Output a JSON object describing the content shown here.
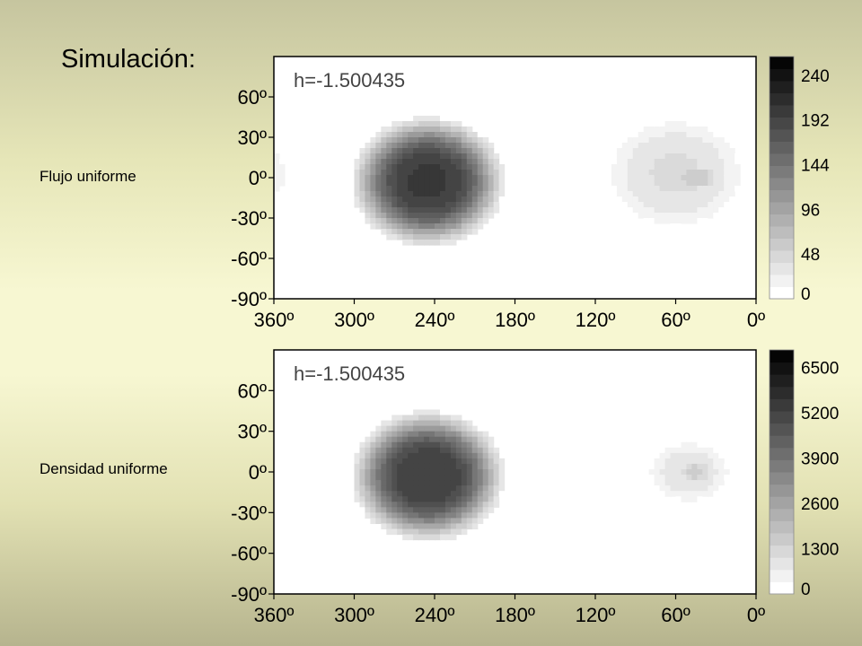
{
  "slide": {
    "title": "Simulación:",
    "row_labels": [
      "Flujo uniforme",
      "Densidad uniforme"
    ]
  },
  "colors": {
    "background_light": "#f7f7d2",
    "plot_bg": "#ffffff",
    "ink": "#000000"
  },
  "chart_data": [
    {
      "type": "heatmap",
      "annotation": "h=-1.500435",
      "xlabel": "",
      "ylabel": "",
      "xlim": [
        360,
        0
      ],
      "ylim": [
        -90,
        90
      ],
      "x_ticks": [
        360,
        300,
        240,
        180,
        120,
        60,
        0
      ],
      "x_tick_labels": [
        "360º",
        "300º",
        "240º",
        "180º",
        "120º",
        "60º",
        "0º"
      ],
      "y_ticks": [
        60,
        30,
        0,
        -30,
        -60,
        -90
      ],
      "y_tick_labels": [
        "60º",
        "30º",
        "0º",
        "-30º",
        "-60º",
        "-90º"
      ],
      "colorbar": {
        "min": 0,
        "max": 260,
        "ticks": [
          0,
          48,
          96,
          144,
          192,
          240
        ],
        "tick_labels": [
          "0",
          "48",
          "96",
          "144",
          "192",
          "240"
        ]
      },
      "features": [
        {
          "name": "dark-blob",
          "center_lon": 245,
          "center_lat": -3,
          "lon_halfwidth": 50,
          "lat_halfwidth": 42,
          "peak": 210
        },
        {
          "name": "light-blob",
          "center_lon": 60,
          "center_lat": 3,
          "lon_halfwidth": 48,
          "lat_halfwidth": 38,
          "peak": 40
        },
        {
          "name": "light-core",
          "center_lon": 45,
          "center_lat": 0,
          "lon_halfwidth": 16,
          "lat_halfwidth": 10,
          "peak": 65
        },
        {
          "name": "edge-wisp",
          "center_lon": 358,
          "center_lat": 3,
          "lon_halfwidth": 6,
          "lat_halfwidth": 16,
          "peak": 22
        }
      ]
    },
    {
      "type": "heatmap",
      "annotation": "h=-1.500435",
      "xlabel": "",
      "ylabel": "",
      "xlim": [
        360,
        0
      ],
      "ylim": [
        -90,
        90
      ],
      "x_ticks": [
        360,
        300,
        240,
        180,
        120,
        60,
        0
      ],
      "x_tick_labels": [
        "360º",
        "300º",
        "240º",
        "180º",
        "120º",
        "60º",
        "0º"
      ],
      "y_ticks": [
        60,
        30,
        0,
        -30,
        -60,
        -90
      ],
      "y_tick_labels": [
        "60º",
        "30º",
        "0º",
        "-30º",
        "-60º",
        "-90º"
      ],
      "colorbar": {
        "min": 0,
        "max": 7000,
        "ticks": [
          0,
          1300,
          2600,
          3900,
          5200,
          6500
        ],
        "tick_labels": [
          "0",
          "1300",
          "2600",
          "3900",
          "5200",
          "6500"
        ]
      },
      "features": [
        {
          "name": "dark-blob",
          "center_lon": 245,
          "center_lat": -3,
          "lon_halfwidth": 50,
          "lat_halfwidth": 42,
          "peak": 5600
        },
        {
          "name": "light-blob",
          "center_lon": 50,
          "center_lat": 0,
          "lon_halfwidth": 30,
          "lat_halfwidth": 22,
          "peak": 900
        },
        {
          "name": "light-core",
          "center_lon": 45,
          "center_lat": 0,
          "lon_halfwidth": 14,
          "lat_halfwidth": 9,
          "peak": 1500
        }
      ]
    }
  ]
}
